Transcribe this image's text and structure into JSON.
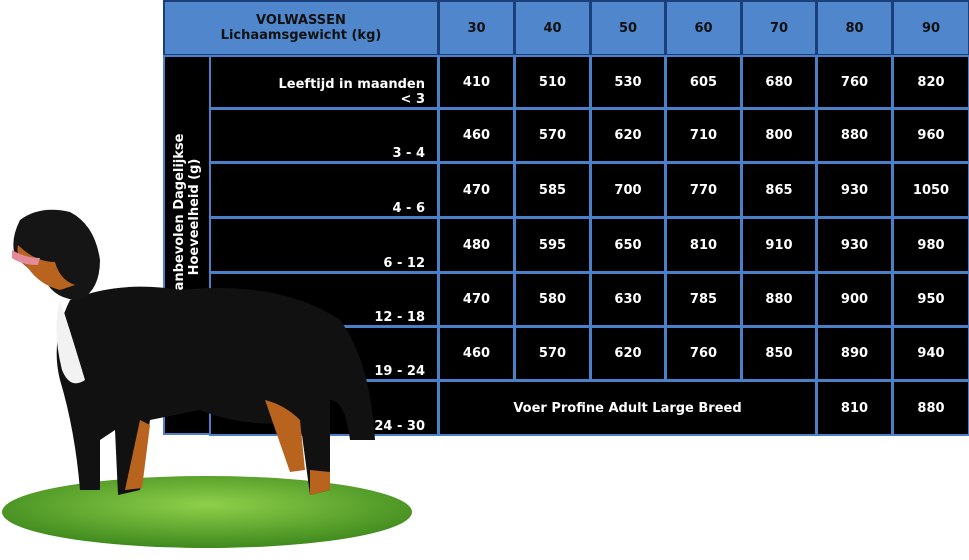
{
  "header": {
    "title": "VOLWASSEN",
    "subtitle": "Lichaamsgewicht (kg)",
    "weights": [
      30,
      40,
      50,
      60,
      70,
      80,
      90
    ]
  },
  "side_label": [
    "Aanbevolen Dagelijkse",
    "Hoeveelheid (g)"
  ],
  "rows": [
    {
      "age": [
        "Leeftijd in maanden",
        "< 3"
      ],
      "values": [
        410,
        510,
        530,
        605,
        680,
        760,
        820
      ]
    },
    {
      "age": [
        "3 - 4"
      ],
      "values": [
        460,
        570,
        620,
        710,
        800,
        880,
        960
      ]
    },
    {
      "age": [
        "4 - 6"
      ],
      "values": [
        470,
        585,
        700,
        770,
        865,
        930,
        1050
      ]
    },
    {
      "age": [
        "6 - 12"
      ],
      "values": [
        480,
        595,
        650,
        810,
        910,
        930,
        980
      ]
    },
    {
      "age": [
        "12 - 18"
      ],
      "values": [
        470,
        580,
        630,
        785,
        880,
        900,
        950
      ]
    },
    {
      "age": [
        "19 - 24"
      ],
      "values": [
        460,
        570,
        620,
        760,
        850,
        890,
        940
      ]
    },
    {
      "age": [
        "24 - 30"
      ],
      "note": "Voer Profine Adult Large Breed",
      "values": [
        810,
        880
      ]
    }
  ]
}
